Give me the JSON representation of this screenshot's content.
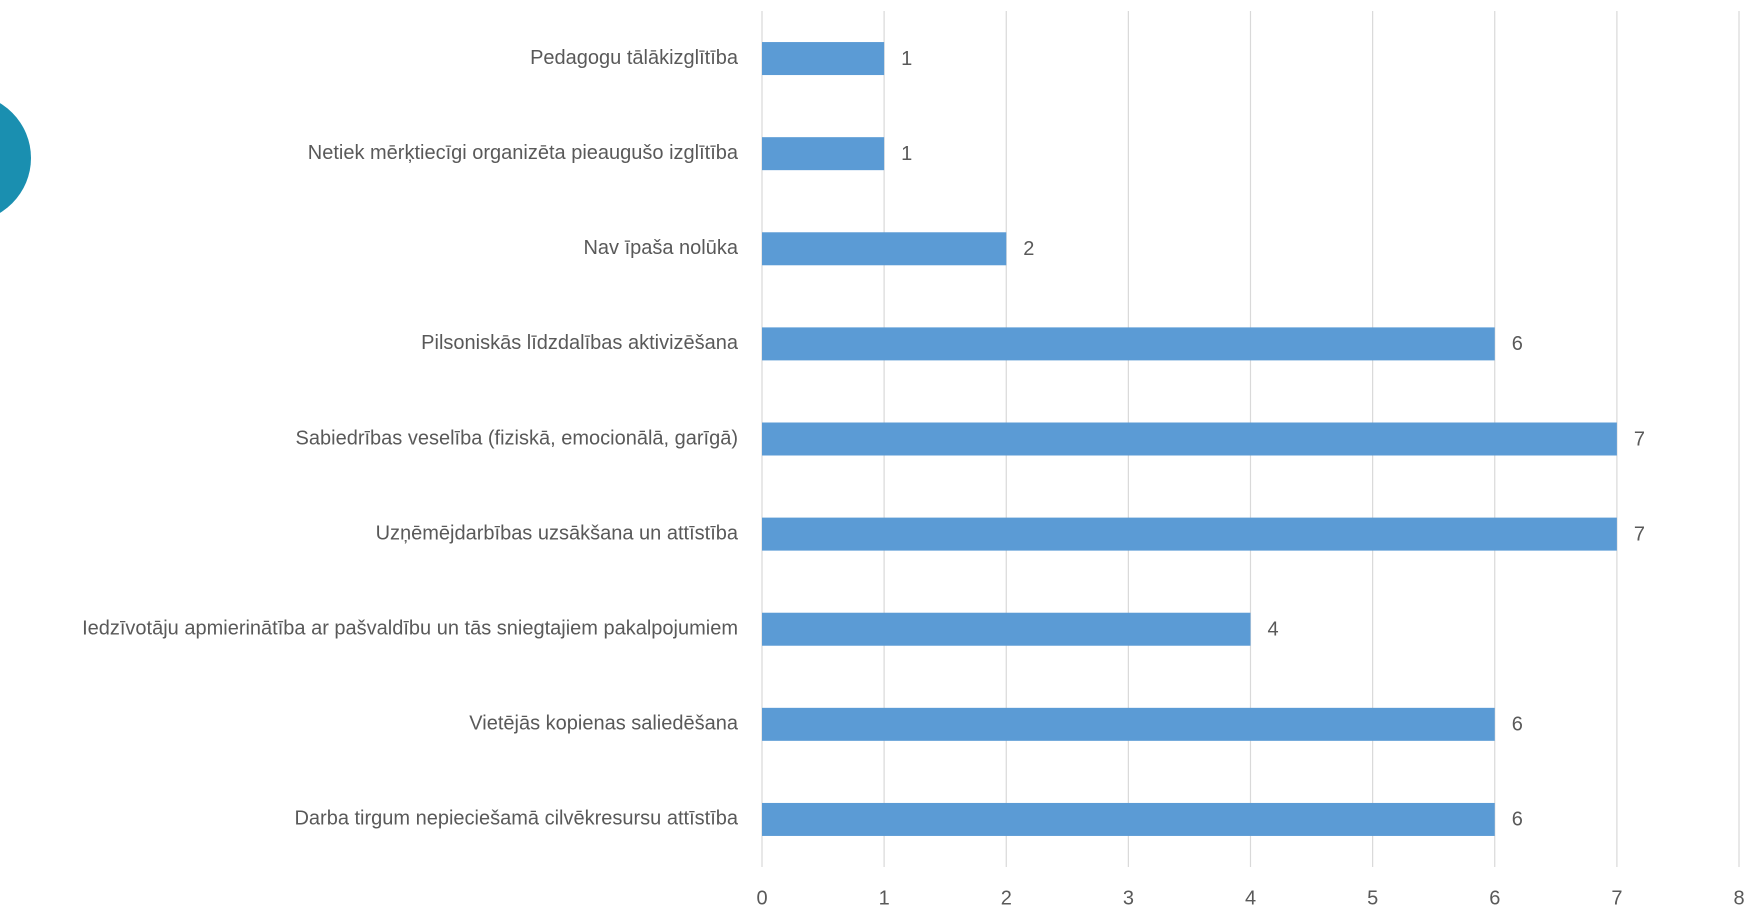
{
  "chart_data": {
    "type": "bar",
    "orientation": "horizontal",
    "categories": [
      "Pedagogu tālākizglītība",
      "Netiek mērķtiecīgi organizēta pieaugušo izglītība",
      "Nav īpaša nolūka",
      "Pilsoniskās līdzdalības aktivizēšana",
      "Sabiedrības veselība (fiziskā, emocionālā, garīgā)",
      "Uzņēmējdarbības uzsākšana un attīstība",
      "Iedzīvotāju apmierinātība ar pašvaldību un tās sniegtajiem pakalpojumiem",
      "Vietējās kopienas saliedēšana",
      "Darba tirgum nepieciešamā cilvēkresursu attīstība"
    ],
    "values": [
      1,
      1,
      2,
      6,
      7,
      7,
      4,
      6,
      6
    ],
    "color": "#5b9bd5",
    "xlim": [
      0,
      8
    ],
    "xticks": [
      0,
      1,
      2,
      3,
      4,
      5,
      6,
      7,
      8
    ],
    "grid": true
  }
}
